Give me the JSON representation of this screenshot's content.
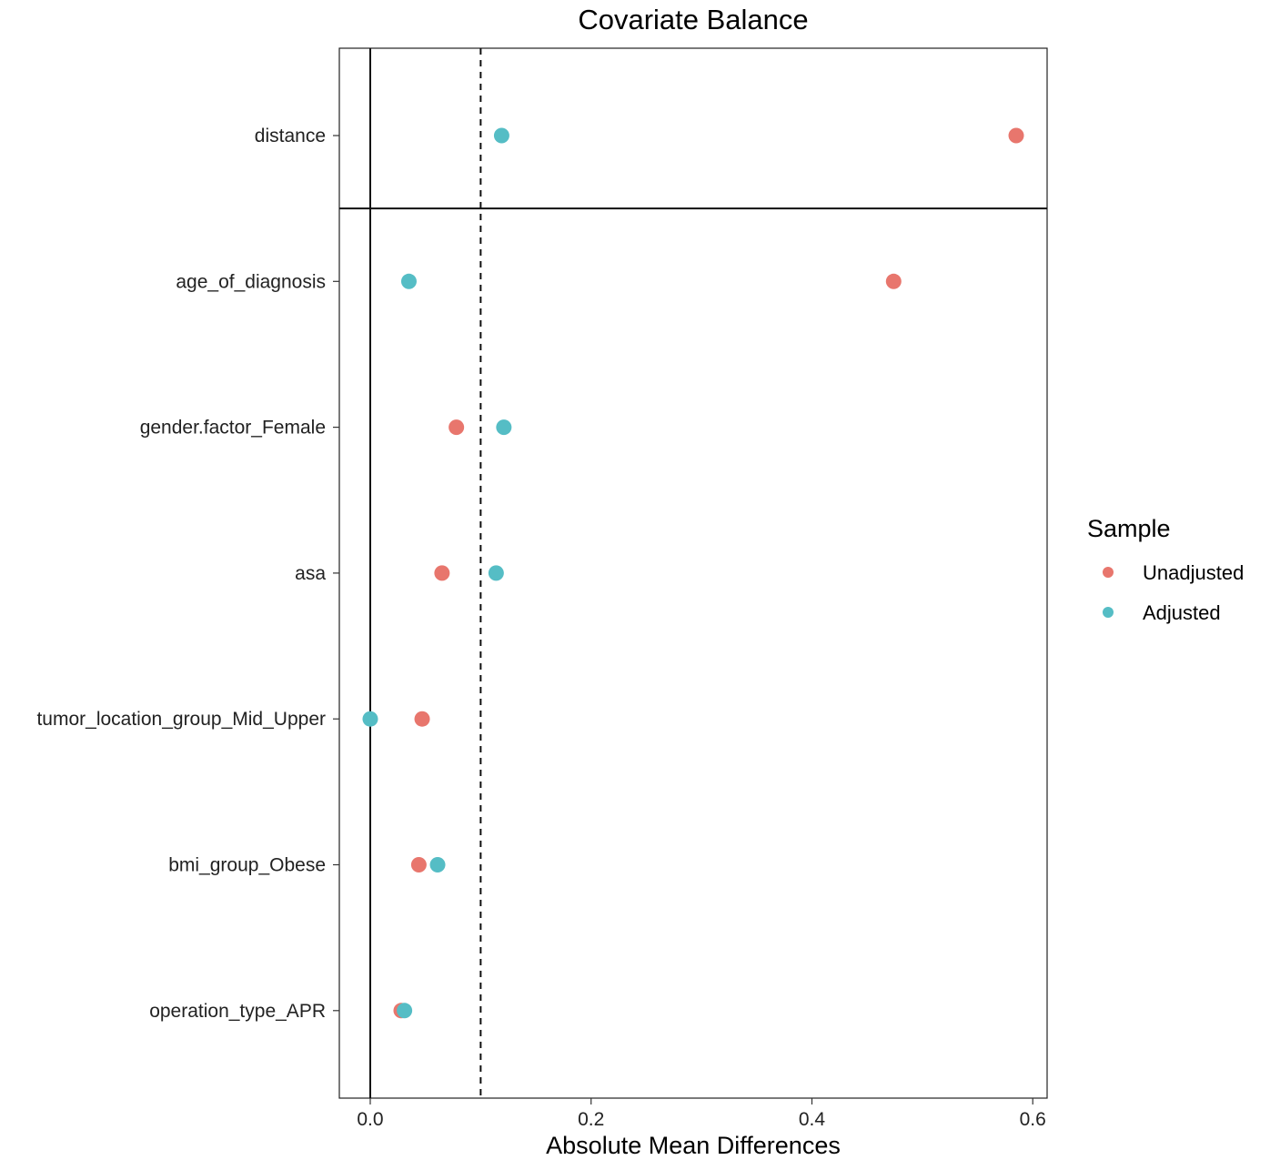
{
  "chart_data": {
    "type": "scatter",
    "title": "Covariate Balance",
    "xlabel": "Absolute Mean Differences",
    "ylabel": "",
    "xlim": [
      -0.028,
      0.613
    ],
    "x_ticks": [
      "0.0",
      "0.2",
      "0.4",
      "0.6"
    ],
    "x_tick_values": [
      0.0,
      0.2,
      0.4,
      0.6
    ],
    "threshold": 0.1,
    "reference_line": 0.0,
    "categories": [
      "distance",
      "age_of_diagnosis",
      "gender.factor_Female",
      "asa",
      "tumor_location_group_Mid_Upper",
      "bmi_group_Obese",
      "operation_type_APR"
    ],
    "separator_after": "distance",
    "grid": false,
    "legend_position": "right",
    "legend_title": "Sample",
    "series": [
      {
        "name": "Unadjusted",
        "color": "#E8766D",
        "values": [
          0.585,
          0.474,
          0.078,
          0.065,
          0.047,
          0.044,
          0.028
        ]
      },
      {
        "name": "Adjusted",
        "color": "#55BDC5",
        "values": [
          0.119,
          0.035,
          0.121,
          0.114,
          0.0,
          0.061,
          0.031
        ]
      }
    ]
  }
}
